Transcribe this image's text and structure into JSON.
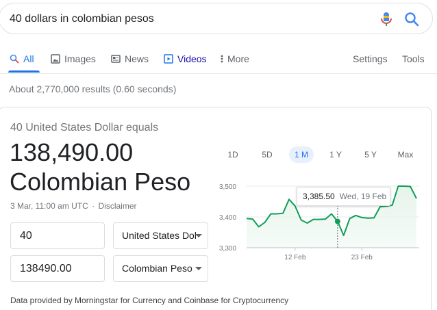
{
  "search": {
    "query": "40 dollars in colombian pesos"
  },
  "tabs": [
    {
      "label": "All",
      "icon": "search-icon"
    },
    {
      "label": "Images",
      "icon": "image-icon"
    },
    {
      "label": "News",
      "icon": "news-icon"
    },
    {
      "label": "Videos",
      "icon": "play-icon"
    },
    {
      "label": "More",
      "icon": "more-vert-icon"
    }
  ],
  "tools": {
    "settings": "Settings",
    "tools": "Tools"
  },
  "result_stats": "About 2,770,000 results (0.60 seconds)",
  "converter": {
    "equals_text": "40 United States Dollar equals",
    "amount": "138,490.00",
    "currency_name": "Colombian Peso",
    "timestamp": "3 Mar, 11:00 am UTC",
    "disclaimer": "Disclaimer",
    "from_value": "40",
    "from_currency": "United States Dollar",
    "to_value": "138490.00",
    "to_currency": "Colombian Peso",
    "footer": "Data provided by Morningstar for Currency and Coinbase for Cryptocurrency",
    "ranges": [
      "1D",
      "5D",
      "1 M",
      "1 Y",
      "5 Y",
      "Max"
    ],
    "active_range": "1 M"
  },
  "colors": {
    "accent": "#1a73e8",
    "chart_line": "#0f9d58",
    "chart_fill": "#e6f4ea"
  },
  "chart_data": {
    "type": "area",
    "title": "",
    "xlabel": "",
    "ylabel": "",
    "ylim": [
      3300,
      3500
    ],
    "yticks": [
      3300,
      3400,
      3500
    ],
    "ytick_labels": [
      "3,300",
      "3,400",
      "3,500"
    ],
    "xtick_labels": [
      {
        "label": "12 Feb",
        "date": "2020-02-12"
      },
      {
        "label": "23 Feb",
        "date": "2020-02-23"
      }
    ],
    "x": [
      "2020-02-04",
      "2020-02-05",
      "2020-02-06",
      "2020-02-07",
      "2020-02-08",
      "2020-02-09",
      "2020-02-10",
      "2020-02-11",
      "2020-02-12",
      "2020-02-13",
      "2020-02-14",
      "2020-02-15",
      "2020-02-16",
      "2020-02-17",
      "2020-02-18",
      "2020-02-19",
      "2020-02-20",
      "2020-02-21",
      "2020-02-22",
      "2020-02-23",
      "2020-02-24",
      "2020-02-25",
      "2020-02-26",
      "2020-02-27",
      "2020-02-28",
      "2020-02-29",
      "2020-03-01",
      "2020-03-02",
      "2020-03-03"
    ],
    "series": [
      {
        "values": [
          3395,
          3393,
          3368,
          3382,
          3410,
          3410,
          3412,
          3457,
          3435,
          3390,
          3380,
          3392,
          3392,
          3393,
          3410,
          3385.5,
          3340,
          3395,
          3405,
          3398,
          3396,
          3397,
          3433,
          3435,
          3438,
          3500,
          3500,
          3499,
          3460
        ]
      }
    ],
    "tooltip": {
      "value": "3,385.50",
      "date": "Wed, 19 Feb"
    },
    "grid": true
  }
}
